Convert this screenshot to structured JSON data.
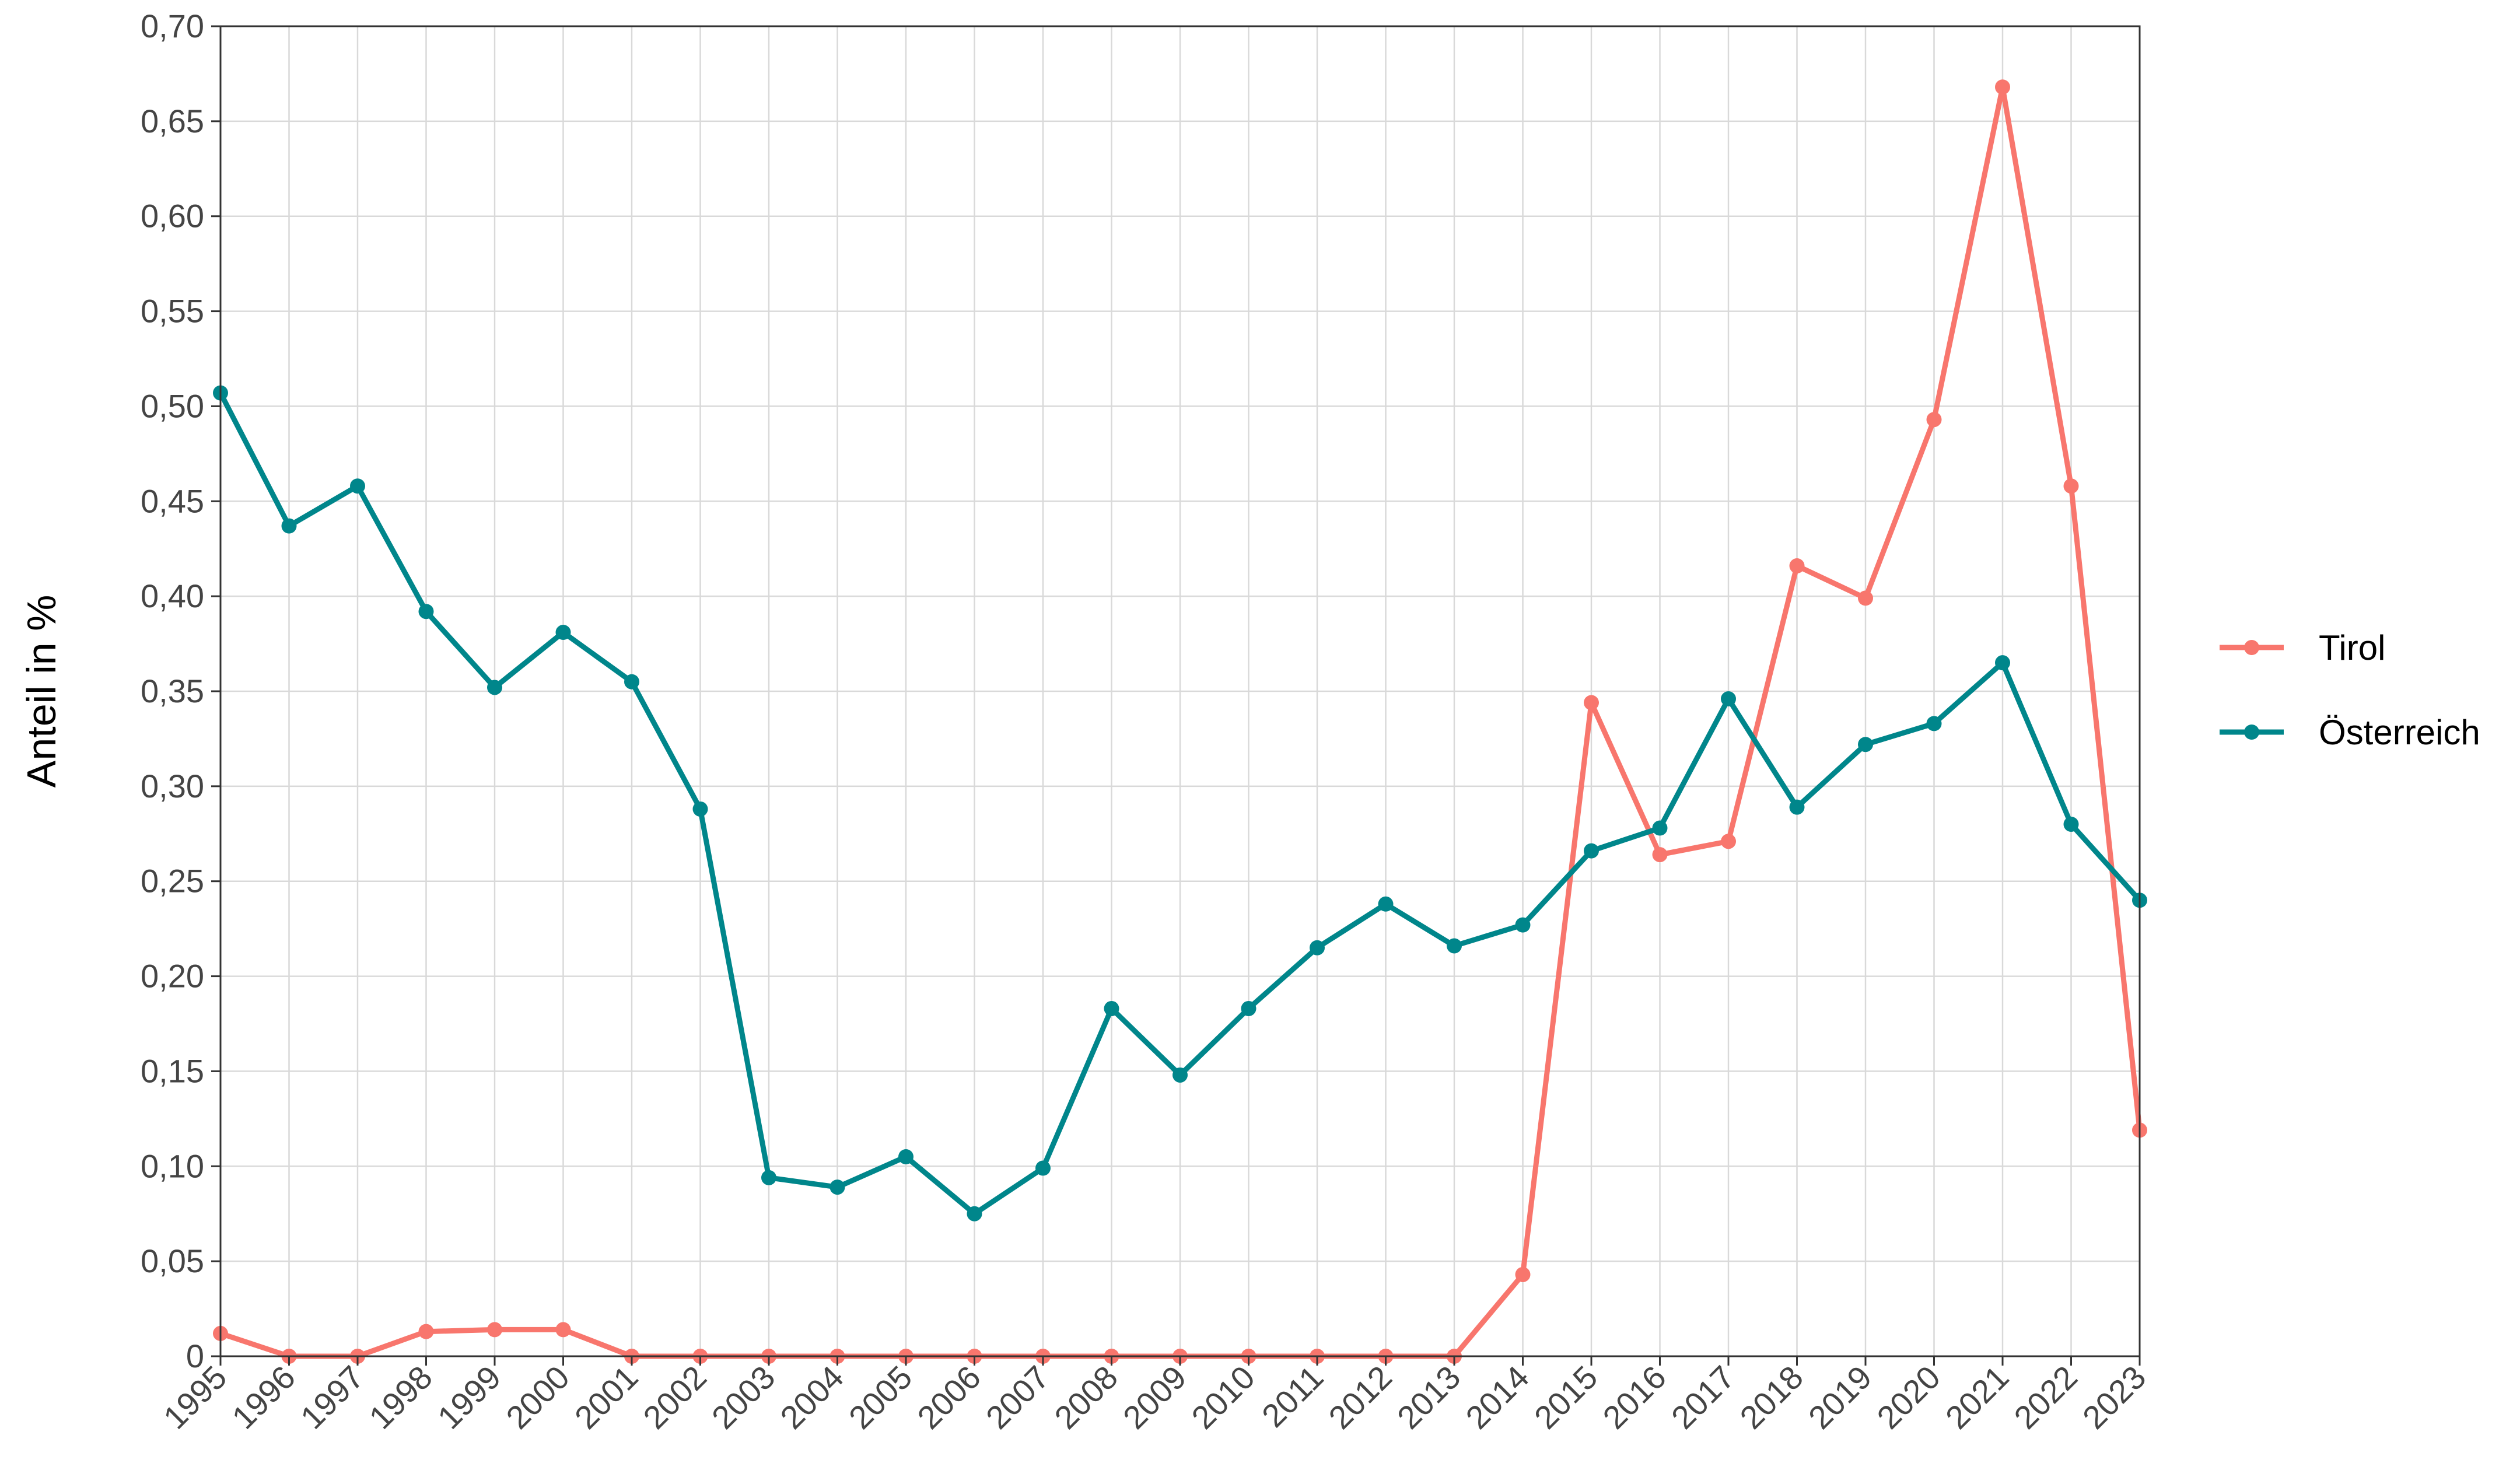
{
  "chart_data": {
    "type": "line",
    "ylabel": "Anteil in %",
    "xlabel": "",
    "title": "",
    "ylim": [
      0,
      0.7
    ],
    "y_ticks": [
      0,
      0.05,
      0.1,
      0.15,
      0.2,
      0.25,
      0.3,
      0.35,
      0.4,
      0.45,
      0.5,
      0.55,
      0.6,
      0.65,
      0.7
    ],
    "y_tick_labels": [
      "0",
      "0,05",
      "0,10",
      "0,15",
      "0,20",
      "0,25",
      "0,30",
      "0,35",
      "0,40",
      "0,45",
      "0,50",
      "0,55",
      "0,60",
      "0,65",
      "0,70"
    ],
    "x": [
      "1995",
      "1996",
      "1997",
      "1998",
      "1999",
      "2000",
      "2001",
      "2002",
      "2003",
      "2004",
      "2005",
      "2006",
      "2007",
      "2008",
      "2009",
      "2010",
      "2011",
      "2012",
      "2013",
      "2014",
      "2015",
      "2016",
      "2017",
      "2018",
      "2019",
      "2020",
      "2021",
      "2022",
      "2023"
    ],
    "grid": true,
    "legend_position": "right",
    "series": [
      {
        "name": "Tirol",
        "color": "#F8766D",
        "values": [
          0.012,
          0,
          0,
          0.013,
          0.014,
          0.014,
          0,
          0,
          0,
          0,
          0,
          0,
          0,
          0,
          0,
          0,
          0,
          0,
          0,
          0.043,
          0.344,
          0.264,
          0.271,
          0.416,
          0.399,
          0.493,
          0.668,
          0.458,
          0.119
        ]
      },
      {
        "name": "Österreich",
        "color": "#00868B",
        "values": [
          0.507,
          0.437,
          0.458,
          0.392,
          0.352,
          0.381,
          0.355,
          0.288,
          0.094,
          0.089,
          0.105,
          0.075,
          0.099,
          0.183,
          0.148,
          0.183,
          0.215,
          0.238,
          0.216,
          0.227,
          0.266,
          0.278,
          0.346,
          0.289,
          0.322,
          0.333,
          0.365,
          0.28,
          0.24
        ]
      }
    ]
  }
}
